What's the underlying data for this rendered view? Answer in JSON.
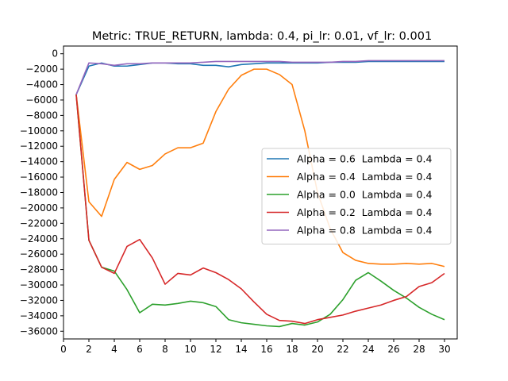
{
  "chart_data": {
    "type": "line",
    "title": "Metric: TRUE_RETURN, lambda: 0.4, pi_lr: 0.01, vf_lr: 0.001",
    "xlabel": "",
    "ylabel": "",
    "xlim": [
      0,
      31
    ],
    "ylim": [
      -37000,
      1000
    ],
    "x_ticks": [
      0,
      2,
      4,
      6,
      8,
      10,
      12,
      14,
      16,
      18,
      20,
      22,
      24,
      26,
      28,
      30
    ],
    "y_ticks": [
      0,
      -2000,
      -4000,
      -6000,
      -8000,
      -10000,
      -12000,
      -14000,
      -16000,
      -18000,
      -20000,
      -22000,
      -24000,
      -26000,
      -28000,
      -30000,
      -32000,
      -34000,
      -36000
    ],
    "grid": false,
    "legend_placement": "center-right",
    "x": [
      1,
      2,
      3,
      4,
      5,
      6,
      7,
      8,
      9,
      10,
      11,
      12,
      13,
      14,
      15,
      16,
      17,
      18,
      19,
      20,
      21,
      22,
      23,
      24,
      25,
      26,
      27,
      28,
      29,
      30
    ],
    "series": [
      {
        "name": "Alpha = 0.6  Lambda = 0.4",
        "color": "#1f77b4",
        "values": [
          -5300,
          -1600,
          -1200,
          -1600,
          -1600,
          -1400,
          -1200,
          -1200,
          -1300,
          -1300,
          -1500,
          -1500,
          -1700,
          -1400,
          -1300,
          -1200,
          -1200,
          -1200,
          -1200,
          -1200,
          -1100,
          -1100,
          -1100,
          -1000,
          -1000,
          -1000,
          -1000,
          -1000,
          -1000,
          -1000
        ]
      },
      {
        "name": "Alpha = 0.4  Lambda = 0.4",
        "color": "#ff7f0e",
        "values": [
          -5300,
          -19200,
          -21100,
          -16300,
          -14100,
          -15000,
          -14500,
          -13000,
          -12200,
          -12200,
          -11600,
          -7500,
          -4600,
          -2800,
          -2000,
          -2000,
          -2700,
          -4000,
          -10000,
          -18000,
          -22700,
          -25800,
          -26800,
          -27200,
          -27300,
          -27300,
          -27200,
          -27300,
          -27200,
          -27600
        ]
      },
      {
        "name": "Alpha = 0.0  Lambda = 0.4",
        "color": "#2ca02c",
        "values": [
          -5300,
          -24200,
          -27700,
          -28200,
          -30600,
          -33600,
          -32500,
          -32600,
          -32400,
          -32100,
          -32300,
          -32800,
          -34500,
          -34900,
          -35100,
          -35300,
          -35400,
          -35000,
          -35200,
          -34800,
          -33800,
          -31900,
          -29400,
          -28400,
          -29500,
          -30700,
          -31700,
          -32900,
          -33800,
          -34500
        ]
      },
      {
        "name": "Alpha = 0.2  Lambda = 0.4",
        "color": "#d62728",
        "values": [
          -5300,
          -24200,
          -27700,
          -28500,
          -25000,
          -24100,
          -26500,
          -29900,
          -28500,
          -28700,
          -27800,
          -28400,
          -29300,
          -30500,
          -32200,
          -33800,
          -34600,
          -34700,
          -35000,
          -34500,
          -34200,
          -33900,
          -33400,
          -33000,
          -32600,
          -32000,
          -31500,
          -30200,
          -29700,
          -28500
        ]
      },
      {
        "name": "Alpha = 0.8  Lambda = 0.4",
        "color": "#9467bd",
        "values": [
          -5300,
          -1200,
          -1300,
          -1500,
          -1300,
          -1300,
          -1200,
          -1200,
          -1200,
          -1200,
          -1100,
          -1000,
          -1000,
          -1000,
          -1000,
          -1000,
          -1000,
          -1100,
          -1100,
          -1100,
          -1100,
          -1000,
          -1000,
          -900,
          -900,
          -900,
          -900,
          -900,
          -900,
          -900
        ]
      }
    ]
  }
}
